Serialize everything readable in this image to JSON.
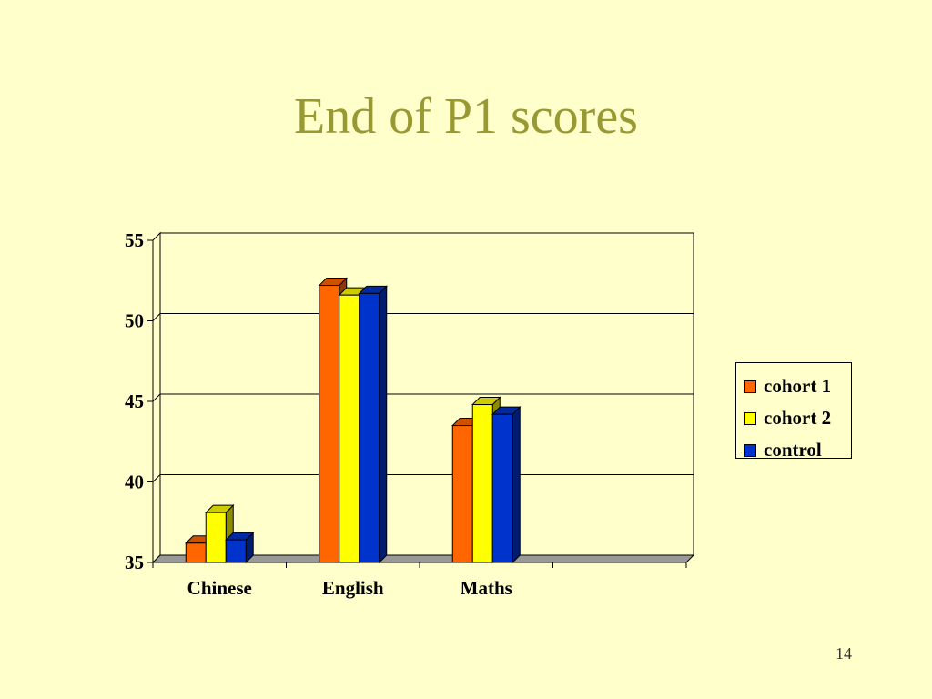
{
  "slide": {
    "title": "End of P1 scores",
    "page_number": "14"
  },
  "colors": {
    "background": "#ffffcc",
    "title": "#999933",
    "gridline": "#000000"
  },
  "chart_data": {
    "type": "bar",
    "style": "3d-clustered",
    "categories": [
      "Chinese",
      "English",
      "Maths"
    ],
    "series": [
      {
        "name": "cohort 1",
        "values": [
          36.2,
          52.2,
          43.5
        ],
        "color": "#ff6600"
      },
      {
        "name": "cohort 2",
        "values": [
          38.1,
          51.6,
          44.8
        ],
        "color": "#ffff00"
      },
      {
        "name": "control",
        "values": [
          36.4,
          51.7,
          44.2
        ],
        "color": "#0033cc"
      }
    ],
    "yticks": [
      35,
      40,
      45,
      50,
      55
    ],
    "ylim": [
      35,
      55
    ],
    "category_slots": 4,
    "grid": true,
    "legend": "right"
  }
}
